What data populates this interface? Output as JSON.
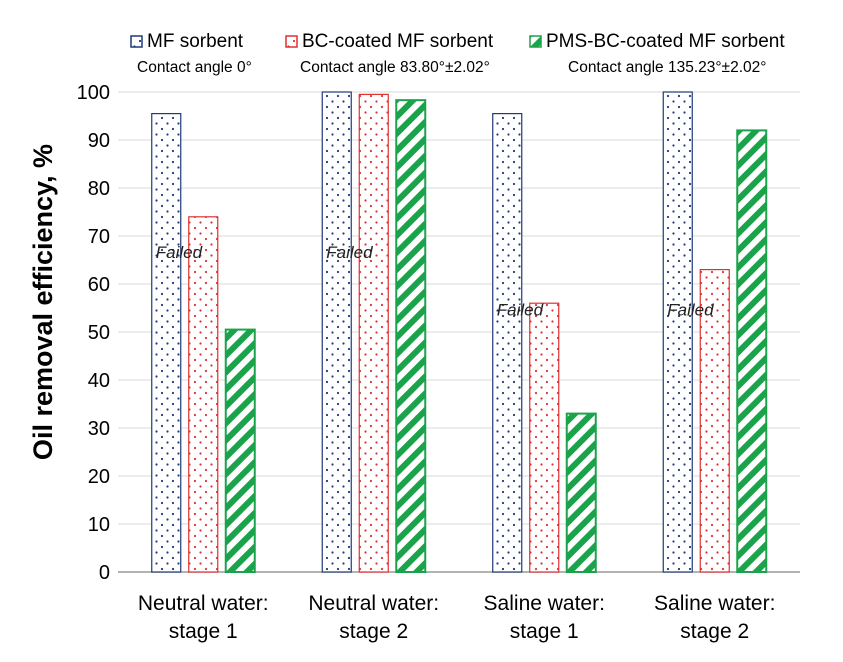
{
  "chart_data": {
    "type": "bar",
    "ylabel": "Oil removal efficiency, %",
    "ylim": [
      0,
      100
    ],
    "yticks": [
      0,
      10,
      20,
      30,
      40,
      50,
      60,
      70,
      80,
      90,
      100
    ],
    "grid": "horizontal",
    "legend_position": "top",
    "categories": [
      [
        "Neutral water:",
        "stage 1"
      ],
      [
        "Neutral water:",
        "stage 2"
      ],
      [
        "Saline water:",
        "stage 1"
      ],
      [
        "Saline water:",
        "stage 2"
      ]
    ],
    "series": [
      {
        "name": "MF sorbent",
        "subtitle": "Contact angle 0°",
        "color": "#1f3a7a",
        "pattern": "dots",
        "values": [
          95.5,
          100,
          95.5,
          100
        ]
      },
      {
        "name": "BC-coated MF sorbent",
        "subtitle": "Contact angle 83.80°±2.02°",
        "color": "#e03131",
        "pattern": "dots",
        "values": [
          74,
          99.5,
          56,
          63
        ]
      },
      {
        "name": "PMS-BC-coated MF sorbent",
        "subtitle": "Contact angle 135.23°±2.02°",
        "color": "#1aa34a",
        "pattern": "diagonal-stripes",
        "values": [
          50.5,
          98.3,
          33,
          92
        ]
      }
    ],
    "annotations": [
      {
        "text": "Failed",
        "category_index": 0,
        "series_index": 0,
        "y": 65
      },
      {
        "text": "Failed",
        "category_index": 1,
        "series_index": 0,
        "y": 65
      },
      {
        "text": "Failed",
        "category_index": 2,
        "series_index": 0,
        "y": 53
      },
      {
        "text": "Failed",
        "category_index": 3,
        "series_index": 0,
        "y": 53
      }
    ]
  }
}
